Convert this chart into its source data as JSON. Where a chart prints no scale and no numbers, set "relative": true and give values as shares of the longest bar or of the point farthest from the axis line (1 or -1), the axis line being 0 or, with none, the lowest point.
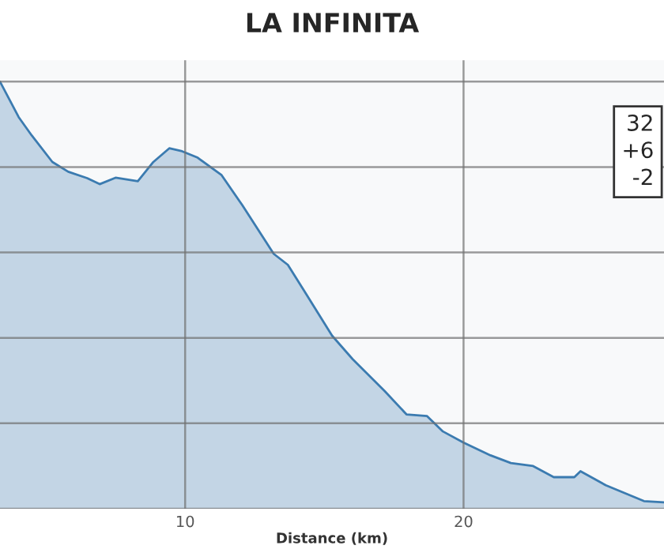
{
  "chart_data": {
    "type": "area",
    "title": "LA INFINITA",
    "xlabel": "Distance (km)",
    "relative": true,
    "xlim": [
      3.35,
      27.2
    ],
    "xticks": [
      10,
      20
    ],
    "grid": true,
    "annotations": [
      "32",
      "+6",
      "-2"
    ],
    "series": [
      {
        "color": "#3b7bb0",
        "x": [
          3.35,
          4.02,
          4.49,
          5.23,
          5.8,
          6.48,
          6.93,
          7.5,
          8.3,
          8.86,
          9.43,
          9.89,
          10.45,
          11.31,
          12.05,
          13.18,
          13.69,
          14.26,
          15.28,
          16.02,
          17.16,
          17.95,
          18.69,
          19.26,
          20.0,
          20.97,
          21.7,
          22.5,
          23.24,
          23.98,
          24.2,
          25.11,
          26.48,
          27.2
        ],
        "values": [
          1.0,
          0.917,
          0.874,
          0.812,
          0.789,
          0.774,
          0.76,
          0.775,
          0.767,
          0.812,
          0.844,
          0.837,
          0.822,
          0.781,
          0.711,
          0.597,
          0.571,
          0.512,
          0.405,
          0.35,
          0.276,
          0.221,
          0.217,
          0.181,
          0.155,
          0.125,
          0.107,
          0.1,
          0.074,
          0.074,
          0.088,
          0.055,
          0.018,
          0.015
        ]
      }
    ]
  }
}
